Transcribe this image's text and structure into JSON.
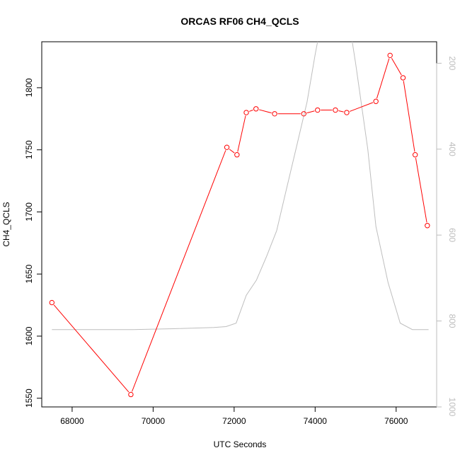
{
  "chart_data": {
    "type": "line",
    "title": "ORCAS RF06 CH4_QCLS",
    "xlabel": "UTC Seconds",
    "ylabel": "CH4_QCLS",
    "xlim": [
      67250,
      77000
    ],
    "ylim": [
      1543,
      1837
    ],
    "y2lim": [
      1000,
      150
    ],
    "xticks": [
      68000,
      70000,
      72000,
      74000,
      76000
    ],
    "yticks": [
      1550,
      1600,
      1650,
      1700,
      1750,
      1800
    ],
    "y2ticks": [
      200,
      400,
      600,
      800,
      1000
    ],
    "grid": false,
    "series": [
      {
        "axis": "left",
        "color": "#ff0000",
        "markers": "open-circle",
        "x": [
          67500,
          69450,
          71820,
          72070,
          72300,
          72540,
          73000,
          73720,
          74060,
          74500,
          74780,
          75500,
          75850,
          76170,
          76470,
          76770
        ],
        "y": [
          1627,
          1553,
          1752,
          1746,
          1780,
          1783,
          1779,
          1779,
          1782,
          1782,
          1780,
          1789,
          1826,
          1808,
          1746,
          1689
        ]
      },
      {
        "axis": "right",
        "color": "#bebebe",
        "markers": "none",
        "x": [
          67500,
          68500,
          69500,
          70500,
          71500,
          71800,
          72050,
          72300,
          72550,
          72800,
          73050,
          73300,
          73550,
          73800,
          74000,
          74200,
          74400,
          74600,
          74800,
          75000,
          75300,
          75500,
          75800,
          76100,
          76400,
          76800
        ],
        "y": [
          820,
          820,
          820,
          818,
          815,
          813,
          805,
          740,
          705,
          650,
          590,
          490,
          390,
          290,
          180,
          80,
          40,
          40,
          80,
          200,
          400,
          580,
          710,
          805,
          820,
          820
        ]
      }
    ]
  }
}
